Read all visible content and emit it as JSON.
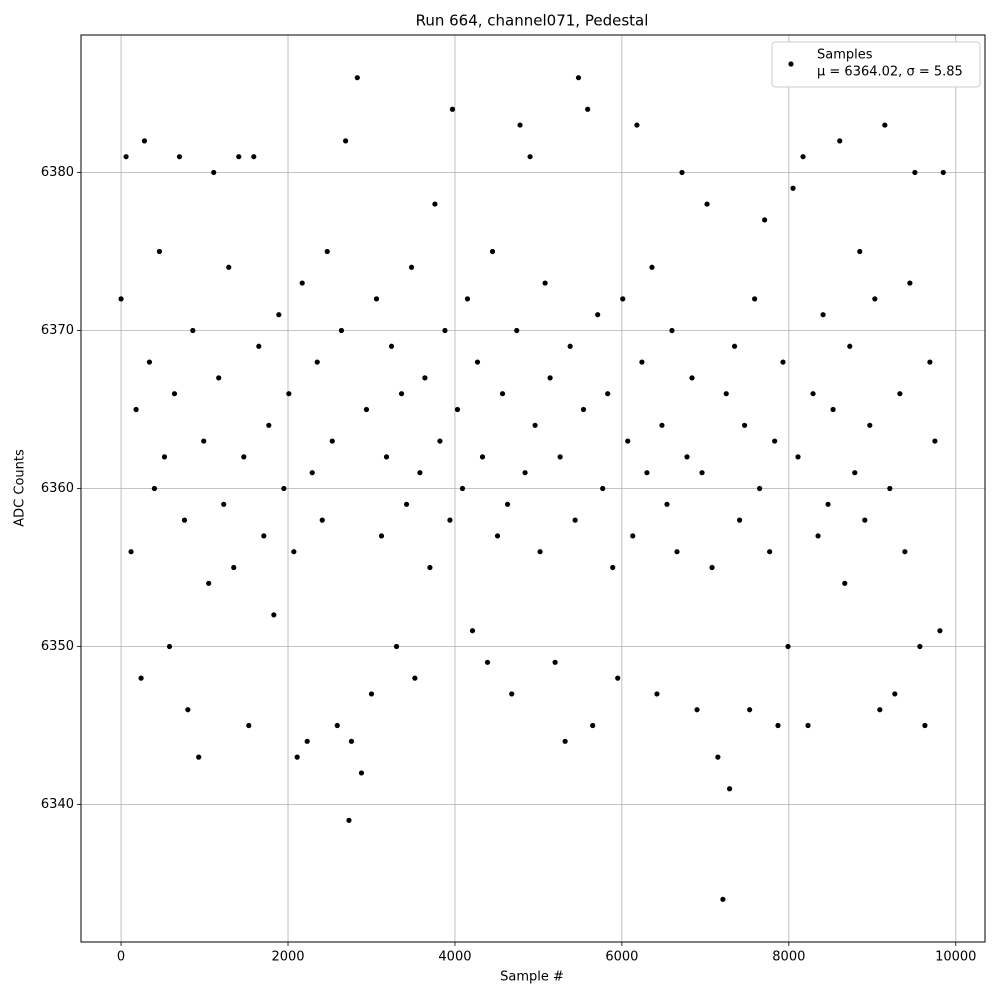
{
  "chart_data": {
    "type": "scatter",
    "title": "Run 664, channel071, Pedestal",
    "x_label": "Sample #",
    "y_label": "ADC Counts",
    "xlim": [
      -480,
      10350
    ],
    "ylim": [
      6331.3,
      6388.7
    ],
    "xticks": [
      0,
      2000,
      4000,
      6000,
      8000,
      10000
    ],
    "yticks": [
      6340,
      6350,
      6360,
      6370,
      6380
    ],
    "grid": true,
    "legend": "upper right",
    "series": [
      {
        "name": "Samples",
        "label": "μ = 6364.02, σ = 5.85",
        "color": "#000000",
        "x": [
          0,
          60,
          120,
          180,
          240,
          280,
          340,
          400,
          460,
          520,
          580,
          640,
          700,
          760,
          800,
          860,
          930,
          990,
          1050,
          1110,
          1170,
          1230,
          1290,
          1350,
          1410,
          1470,
          1530,
          1590,
          1650,
          1710,
          1770,
          1830,
          1890,
          1950,
          2010,
          2070,
          2110,
          2170,
          2230,
          2290,
          2350,
          2410,
          2470,
          2530,
          2590,
          2640,
          2690,
          2730,
          2760,
          2830,
          2880,
          2940,
          3000,
          3060,
          3120,
          3180,
          3240,
          3300,
          3360,
          3420,
          3480,
          3520,
          3580,
          3640,
          3700,
          3760,
          3820,
          3880,
          3940,
          3970,
          4030,
          4090,
          4150,
          4210,
          4270,
          4330,
          4390,
          4450,
          4510,
          4570,
          4630,
          4680,
          4740,
          4780,
          4840,
          4900,
          4960,
          5020,
          5080,
          5140,
          5200,
          5260,
          5320,
          5380,
          5440,
          5480,
          5540,
          5590,
          5650,
          5710,
          5770,
          5830,
          5890,
          5950,
          6010,
          6070,
          6130,
          6180,
          6240,
          6300,
          6360,
          6420,
          6480,
          6540,
          6600,
          6660,
          6720,
          6780,
          6840,
          6900,
          6960,
          7020,
          7080,
          7150,
          7210,
          7250,
          7290,
          7350,
          7410,
          7470,
          7530,
          7590,
          7650,
          7710,
          7770,
          7830,
          7870,
          7930,
          7990,
          8050,
          8110,
          8170,
          8230,
          8290,
          8350,
          8410,
          8470,
          8530,
          8610,
          8670,
          8730,
          8790,
          8850,
          8910,
          8970,
          9030,
          9090,
          9150,
          9210,
          9270,
          9330,
          9390,
          9450,
          9510,
          9570,
          9630,
          9690,
          9750,
          9810,
          9850
        ],
        "values": [
          6372,
          6381,
          6356,
          6365,
          6348,
          6382,
          6368,
          6360,
          6375,
          6362,
          6350,
          6366,
          6381,
          6358,
          6346,
          6370,
          6343,
          6363,
          6354,
          6380,
          6367,
          6359,
          6374,
          6355,
          6381,
          6362,
          6345,
          6381,
          6369,
          6357,
          6364,
          6352,
          6371,
          6360,
          6366,
          6356,
          6343,
          6373,
          6344,
          6361,
          6368,
          6358,
          6375,
          6363,
          6345,
          6370,
          6382,
          6339,
          6344,
          6386,
          6342,
          6365,
          6347,
          6372,
          6357,
          6362,
          6369,
          6350,
          6366,
          6359,
          6374,
          6348,
          6361,
          6367,
          6355,
          6378,
          6363,
          6370,
          6358,
          6384,
          6365,
          6360,
          6372,
          6351,
          6368,
          6362,
          6349,
          6375,
          6357,
          6366,
          6359,
          6347,
          6370,
          6383,
          6361,
          6381,
          6364,
          6356,
          6373,
          6367,
          6349,
          6362,
          6344,
          6369,
          6358,
          6386,
          6365,
          6384,
          6345,
          6371,
          6360,
          6366,
          6355,
          6348,
          6372,
          6363,
          6357,
          6383,
          6368,
          6361,
          6374,
          6347,
          6364,
          6359,
          6370,
          6356,
          6380,
          6362,
          6367,
          6346,
          6361,
          6378,
          6355,
          6343,
          6334,
          6366,
          6341,
          6369,
          6358,
          6364,
          6346,
          6372,
          6360,
          6377,
          6356,
          6363,
          6345,
          6368,
          6350,
          6379,
          6362,
          6381,
          6345,
          6366,
          6357,
          6371,
          6359,
          6365,
          6382,
          6354,
          6369,
          6361,
          6375,
          6358,
          6364,
          6372,
          6346,
          6383,
          6360,
          6347,
          6366,
          6356,
          6373,
          6380,
          6350,
          6345,
          6368,
          6363,
          6351,
          6380
        ]
      }
    ]
  }
}
